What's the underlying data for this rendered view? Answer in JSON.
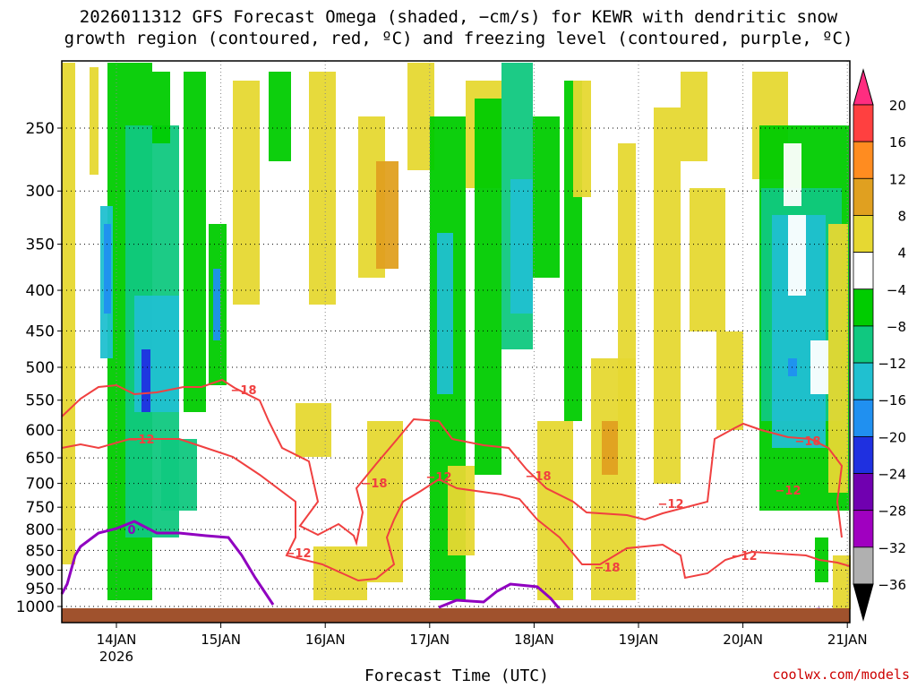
{
  "title_line1": "2026011312 GFS Forecast Omega (shaded, −cm/s) for KEWR with dendritic snow",
  "title_line2": "growth region (contoured, red, ºC) and freezing level (contoured, purple, ºC)",
  "xlabel": "Forecast Time (UTC)",
  "credit": "coolwx.com/models",
  "chart_data": {
    "type": "heatmap",
    "x_ticks": [
      "14JAN",
      "15JAN",
      "16JAN",
      "17JAN",
      "18JAN",
      "19JAN",
      "20JAN",
      "21JAN"
    ],
    "x_year_label": "2026",
    "y_ticks": [
      250,
      300,
      350,
      400,
      450,
      500,
      550,
      600,
      650,
      700,
      750,
      800,
      850,
      900,
      950,
      1000
    ],
    "y_range_hpa": [
      200,
      1030
    ],
    "colorbar": {
      "labels": [
        "20",
        "16",
        "12",
        "8",
        "4",
        "−4",
        "−8",
        "−12",
        "−16",
        "−20",
        "−24",
        "−28",
        "−32",
        "−36"
      ],
      "colors": [
        "#ff2d80",
        "#ff4040",
        "#ff8c20",
        "#e0a020",
        "#e6d832",
        "#ffffff",
        "#00cc00",
        "#10c880",
        "#20c0d0",
        "#2090f0",
        "#1f30e0",
        "#7000b0",
        "#a000c0",
        "#b0b0b0",
        "#000000"
      ]
    },
    "dgz_labels": [
      "−18",
      "−12",
      "−12",
      "−18",
      "−12",
      "−18",
      "−18",
      "−12",
      "−12",
      "−18",
      "−12"
    ],
    "freezing_level_labels": [
      "0"
    ],
    "colors": {
      "dgz_contour": "#f04040",
      "freezing_contour": "#9000c0",
      "terrain": "#a0522d"
    }
  }
}
